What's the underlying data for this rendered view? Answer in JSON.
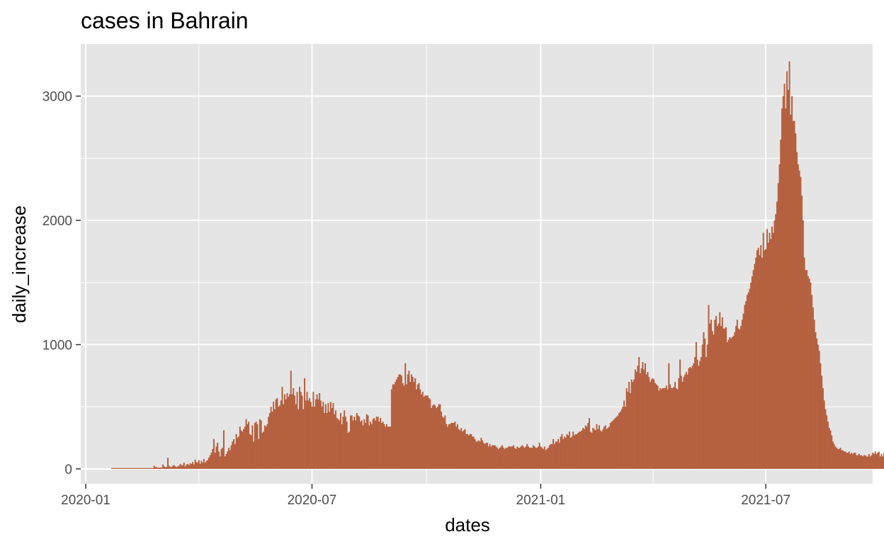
{
  "chart_data": {
    "type": "bar",
    "title": "cases in Bahrain",
    "xlabel": "dates",
    "ylabel": "daily_increase",
    "xlim": [
      "2019-12-28",
      "2021-09-25"
    ],
    "ylim": [
      -120,
      3420
    ],
    "grid": true,
    "legend": "none",
    "bar_color": "#b5603f",
    "panel_color": "#e5e5e5",
    "grid_color": "#ffffff",
    "x_ticks": [
      {
        "date": "2020-01-01",
        "label": "2020-01"
      },
      {
        "date": "2020-07-01",
        "label": "2020-07"
      },
      {
        "date": "2021-01-01",
        "label": "2021-01"
      },
      {
        "date": "2021-07-01",
        "label": "2021-07"
      }
    ],
    "y_ticks": [
      {
        "value": 0,
        "label": "0"
      },
      {
        "value": 1000,
        "label": "1000"
      },
      {
        "value": 2000,
        "label": "2000"
      },
      {
        "value": 3000,
        "label": "3000"
      }
    ],
    "series": [
      {
        "start_date": "2020-01-22",
        "values": [
          0,
          0,
          0,
          0,
          0,
          0,
          0,
          0,
          0,
          0,
          0,
          0,
          0,
          0,
          0,
          0,
          0,
          0,
          0,
          0,
          0,
          0,
          0,
          0,
          0,
          0,
          0,
          0,
          0,
          0,
          0,
          0,
          0,
          0,
          25,
          15,
          15,
          10,
          10,
          10,
          10,
          35,
          20,
          15,
          15,
          90,
          25,
          15,
          15,
          25,
          30,
          20,
          15,
          20,
          25,
          40,
          30,
          30,
          50,
          20,
          35,
          40,
          30,
          45,
          40,
          55,
          35,
          75,
          55,
          50,
          70,
          40,
          65,
          50,
          80,
          50,
          65,
          70,
          90,
          110,
          130,
          160,
          240,
          130,
          180,
          210,
          140,
          100,
          160,
          170,
          310,
          100,
          120,
          140,
          170,
          150,
          190,
          220,
          240,
          200,
          280,
          250,
          260,
          340,
          310,
          300,
          320,
          340,
          400,
          360,
          380,
          280,
          270,
          350,
          220,
          370,
          380,
          360,
          240,
          400,
          390,
          290,
          300,
          350,
          340,
          360,
          420,
          450,
          500,
          460,
          540,
          480,
          560,
          570,
          500,
          510,
          550,
          660,
          520,
          600,
          560,
          610,
          580,
          600,
          790,
          600,
          650,
          590,
          520,
          620,
          480,
          660,
          620,
          590,
          480,
          730,
          550,
          620,
          550,
          570,
          540,
          500,
          620,
          500,
          560,
          600,
          560,
          610,
          550,
          500,
          540,
          450,
          520,
          450,
          530,
          460,
          540,
          490,
          530,
          440,
          470,
          410,
          400,
          390,
          450,
          360,
          420,
          470,
          420,
          380,
          290,
          300,
          430,
          430,
          390,
          420,
          390,
          450,
          430,
          420,
          380,
          390,
          350,
          400,
          370,
          440,
          430,
          350,
          380,
          360,
          400,
          410,
          390,
          420,
          420,
          380,
          410,
          370,
          380,
          360,
          340,
          360,
          340,
          340,
          340,
          640,
          680,
          680,
          700,
          720,
          740,
          760,
          760,
          750,
          690,
          670,
          850,
          680,
          760,
          790,
          700,
          760,
          740,
          700,
          730,
          640,
          680,
          690,
          640,
          600,
          620,
          580,
          590,
          590,
          590,
          570,
          560,
          490,
          510,
          520,
          510,
          490,
          500,
          520,
          520,
          460,
          420,
          410,
          430,
          360,
          340,
          360,
          360,
          370,
          370,
          370,
          380,
          340,
          360,
          320,
          310,
          330,
          300,
          310,
          320,
          280,
          280,
          270,
          280,
          280,
          260,
          260,
          240,
          220,
          220,
          230,
          220,
          250,
          230,
          210,
          200,
          210,
          210,
          180,
          200,
          180,
          190,
          190,
          190,
          180,
          170,
          160,
          170,
          180,
          190,
          170,
          160,
          170,
          170,
          180,
          180,
          180,
          180,
          190,
          170,
          160,
          180,
          170,
          170,
          180,
          190,
          180,
          170,
          180,
          200,
          180,
          170,
          170,
          170,
          190,
          180,
          170,
          170,
          180,
          210,
          180,
          170,
          160,
          180,
          150,
          160,
          170,
          190,
          200,
          200,
          240,
          200,
          220,
          220,
          240,
          210,
          260,
          280,
          240,
          260,
          250,
          280,
          270,
          300,
          250,
          260,
          300,
          270,
          280,
          280,
          290,
          300,
          300,
          310,
          330,
          320,
          350,
          340,
          370,
          410,
          300,
          290,
          330,
          320,
          310,
          360,
          320,
          350,
          310,
          300,
          320,
          340,
          350,
          320,
          330,
          340,
          370,
          380,
          390,
          400,
          410,
          420,
          430,
          450,
          460,
          480,
          500,
          550,
          500,
          650,
          620,
          700,
          610,
          720,
          700,
          720,
          800,
          780,
          830,
          900,
          770,
          810,
          860,
          800,
          850,
          760,
          780,
          740,
          700,
          720,
          730,
          720,
          690,
          680,
          670,
          630,
          650,
          640,
          650,
          650,
          650,
          670,
          640,
          850,
          680,
          650,
          650,
          660,
          700,
          650,
          640,
          730,
          880,
          750,
          700,
          740,
          760,
          780,
          760,
          810,
          820,
          810,
          830,
          850,
          900,
          1020,
          880,
          830,
          870,
          900,
          1000,
          1100,
          1050,
          900,
          1000,
          1320,
          1170,
          1200,
          1110,
          1080,
          1200,
          1230,
          1150,
          1170,
          1260,
          1150,
          1220,
          1130,
          1130,
          1140,
          1020,
          1040,
          1060,
          1050,
          1060,
          1070,
          1100,
          1150,
          1200,
          1130,
          1120,
          1150,
          1200,
          1250,
          1320,
          1350,
          1400,
          1420,
          1450,
          1500,
          1550,
          1600,
          1650,
          1700,
          1760,
          1780,
          1720,
          1800,
          1700,
          1900,
          1760,
          1770,
          1930,
          1820,
          1900,
          1850,
          1950,
          1900,
          2000,
          2050,
          2150,
          2300,
          2450,
          2650,
          2900,
          3000,
          3100,
          2900,
          3200,
          3050,
          3280,
          2850,
          3000,
          2800,
          2800,
          2700,
          2550,
          2450,
          2400,
          2350,
          2200,
          2000,
          1700,
          1600,
          1600,
          1550,
          1530,
          1500,
          1400,
          1300,
          1200,
          1100,
          1050,
          1000,
          950,
          850,
          750,
          650,
          550,
          480,
          430,
          380,
          330,
          310,
          270,
          220,
          200,
          180,
          170,
          160,
          160,
          170,
          150,
          150,
          140,
          140,
          130,
          130,
          140,
          120,
          130,
          120,
          130,
          130,
          110,
          110,
          120,
          110,
          110,
          100,
          110,
          110,
          100,
          100,
          120,
          100,
          110,
          130,
          120,
          140,
          120,
          130,
          140,
          100,
          120,
          100,
          130,
          140,
          120,
          130,
          120,
          110,
          140,
          120,
          130,
          140,
          120,
          110,
          120,
          130,
          140,
          130,
          130,
          120,
          130,
          110,
          140,
          130,
          120,
          110,
          160,
          120,
          130,
          110,
          130,
          120,
          130,
          120,
          140,
          120,
          130,
          110,
          120,
          110,
          120,
          100,
          130,
          100,
          120,
          110,
          130,
          120,
          100,
          120,
          110,
          100,
          120,
          100,
          120
        ]
      }
    ]
  }
}
